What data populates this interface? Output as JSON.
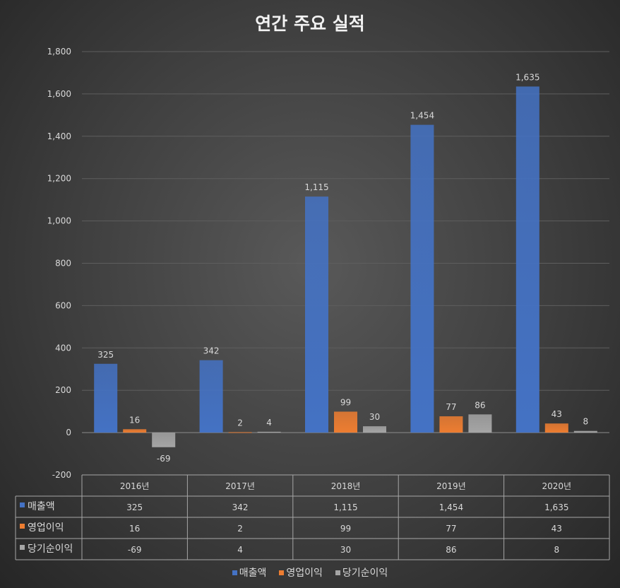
{
  "chart_data": {
    "type": "bar",
    "title": "연간 주요 실적",
    "categories": [
      "2016년",
      "2017년",
      "2018년",
      "2019년",
      "2020년"
    ],
    "series": [
      {
        "name": "매출액",
        "color": "#4472c4",
        "values": [
          325,
          342,
          1115,
          1454,
          1635
        ],
        "labels": [
          "325",
          "342",
          "1,115",
          "1,454",
          "1,635"
        ]
      },
      {
        "name": "영업이익",
        "color": "#ed7d31",
        "values": [
          16,
          2,
          99,
          77,
          43
        ],
        "labels": [
          "16",
          "2",
          "99",
          "77",
          "43"
        ]
      },
      {
        "name": "당기순이익",
        "color": "#a5a5a5",
        "values": [
          -69,
          4,
          30,
          86,
          8
        ],
        "labels": [
          "-69",
          "4",
          "30",
          "86",
          "8"
        ]
      }
    ],
    "ylim": [
      -200,
      1800
    ],
    "yticks": [
      -200,
      0,
      200,
      400,
      600,
      800,
      1000,
      1200,
      1400,
      1600,
      1800
    ],
    "ytick_labels": [
      "-200",
      "0",
      "200",
      "400",
      "600",
      "800",
      "1,000",
      "1,200",
      "1,400",
      "1,600",
      "1,800"
    ],
    "grid": true,
    "data_table": true,
    "legend_position": "bottom"
  }
}
